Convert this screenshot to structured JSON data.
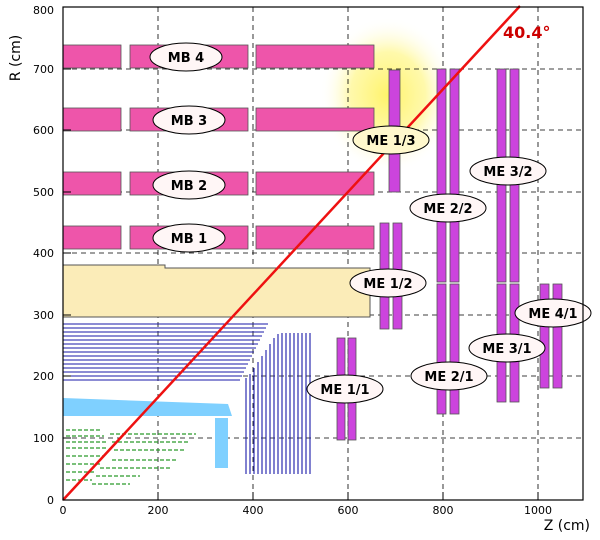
{
  "axes": {
    "x_label": "Z (cm)",
    "y_label": "R (cm)",
    "x_ticks": [
      "0",
      "200",
      "400",
      "600",
      "800",
      "1000"
    ],
    "y_ticks": [
      "0",
      "100",
      "200",
      "300",
      "400",
      "500",
      "600",
      "700",
      "800"
    ]
  },
  "angle_line": {
    "label": "40.4°",
    "color": "#ee1111"
  },
  "colors": {
    "chamber": "#ee55aa",
    "endcap": "#cc44dd",
    "solenoid": "#fbecb8",
    "tracker": "#1a1aa8",
    "ecal": "#7fd0ff",
    "pixel": "#2a9a2a",
    "highlight": "#fff59a"
  },
  "barrel_stations": [
    {
      "label": "MB 4"
    },
    {
      "label": "MB 3"
    },
    {
      "label": "MB 2"
    },
    {
      "label": "MB 1"
    }
  ],
  "endcap_stations": [
    {
      "label": "ME 1/3"
    },
    {
      "label": "ME 2/2"
    },
    {
      "label": "ME 3/2"
    },
    {
      "label": "ME 1/2"
    },
    {
      "label": "ME 4/1"
    },
    {
      "label": "ME 3/1"
    },
    {
      "label": "ME 2/1"
    },
    {
      "label": "ME 1/1"
    }
  ]
}
